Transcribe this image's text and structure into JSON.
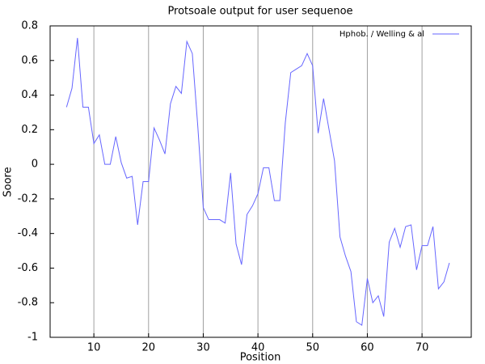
{
  "chart_data": {
    "type": "line",
    "title": "Protsoale output for user sequenoe",
    "x_label": "Position",
    "y_label": "Soore",
    "legend_position": "top-right",
    "grid": "x",
    "xlim": [
      2,
      79
    ],
    "xticks": [
      10,
      20,
      30,
      40,
      50,
      60,
      70
    ],
    "ylim": [
      -1,
      0.8
    ],
    "yticks": [
      0.8,
      0.6,
      0.4,
      0.2,
      0,
      -0.2,
      -0.4,
      -0.6,
      -0.8,
      -1
    ],
    "x": [
      5,
      6,
      7,
      8,
      9,
      10,
      11,
      12,
      13,
      14,
      15,
      16,
      17,
      18,
      19,
      20,
      21,
      22,
      23,
      24,
      25,
      26,
      27,
      28,
      29,
      30,
      31,
      32,
      33,
      34,
      35,
      36,
      37,
      38,
      39,
      40,
      41,
      42,
      43,
      44,
      45,
      46,
      47,
      48,
      49,
      50,
      51,
      52,
      53,
      54,
      55,
      56,
      57,
      58,
      59,
      60,
      61,
      62,
      63,
      64,
      65,
      66,
      67,
      68,
      69,
      70,
      71,
      72,
      73,
      74,
      75
    ],
    "series": [
      {
        "name": "Hphob. / Welling & al",
        "color": "#6666ff",
        "values": [
          0.33,
          0.44,
          0.73,
          0.33,
          0.33,
          0.12,
          0.17,
          0.0,
          0.0,
          0.16,
          0.01,
          -0.08,
          -0.07,
          -0.35,
          -0.1,
          -0.1,
          0.21,
          0.14,
          0.06,
          0.35,
          0.45,
          0.41,
          0.71,
          0.64,
          0.22,
          -0.25,
          -0.32,
          -0.32,
          -0.32,
          -0.34,
          -0.05,
          -0.46,
          -0.58,
          -0.29,
          -0.24,
          -0.17,
          -0.02,
          -0.02,
          -0.21,
          -0.21,
          0.24,
          0.53,
          0.55,
          0.57,
          0.64,
          0.57,
          0.18,
          0.38,
          0.2,
          0.02,
          -0.42,
          -0.53,
          -0.62,
          -0.91,
          -0.93,
          -0.66,
          -0.8,
          -0.76,
          -0.88,
          -0.45,
          -0.37,
          -0.48,
          -0.36,
          -0.35,
          -0.61,
          -0.47,
          -0.47,
          -0.36,
          -0.72,
          -0.68,
          -0.57
        ]
      }
    ]
  }
}
